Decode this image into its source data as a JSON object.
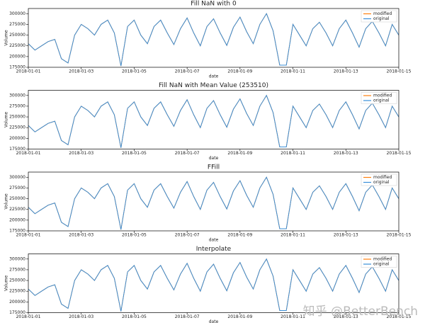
{
  "chart_data": [
    {
      "type": "line",
      "title": "Fill NaN with 0",
      "x_label": "date",
      "y_label": "Volume",
      "x": [
        0,
        0.25,
        0.5,
        0.75,
        1,
        1.25,
        1.5,
        1.75,
        2,
        2.25,
        2.5,
        2.75,
        3,
        3.25,
        3.5,
        3.75,
        4,
        4.25,
        4.5,
        4.75,
        5,
        5.25,
        5.5,
        5.75,
        6,
        6.25,
        6.5,
        6.75,
        7,
        7.25,
        7.5,
        7.75,
        8,
        8.25,
        8.5,
        8.75,
        9,
        9.25,
        9.5,
        9.75,
        10,
        10.25,
        10.5,
        10.75,
        11,
        11.25,
        11.5,
        11.75,
        12,
        12.25,
        12.5,
        12.75,
        13,
        13.25,
        13.5,
        13.75,
        14
      ],
      "series": [
        {
          "name": "modified",
          "color": "#ff7f0e",
          "values": [
            230000,
            215000,
            225000,
            235000,
            240000,
            195000,
            185000,
            250000,
            275000,
            265000,
            250000,
            275000,
            285000,
            255000,
            178000,
            270000,
            285000,
            250000,
            230000,
            270000,
            285000,
            255000,
            228000,
            265000,
            290000,
            255000,
            225000,
            270000,
            288000,
            255000,
            226000,
            268000,
            292000,
            258000,
            230000,
            275000,
            300000,
            260000,
            180000,
            180000,
            275000,
            250000,
            225000,
            265000,
            280000,
            255000,
            225000,
            265000,
            285000,
            255000,
            222000,
            265000,
            282000,
            255000,
            225000,
            275000,
            250000
          ]
        },
        {
          "name": "original",
          "color": "#3a8fd9",
          "values": [
            230000,
            215000,
            225000,
            235000,
            240000,
            195000,
            185000,
            250000,
            275000,
            265000,
            250000,
            275000,
            285000,
            255000,
            178000,
            270000,
            285000,
            250000,
            230000,
            270000,
            285000,
            255000,
            228000,
            265000,
            290000,
            255000,
            225000,
            270000,
            288000,
            255000,
            226000,
            268000,
            292000,
            258000,
            230000,
            275000,
            300000,
            260000,
            180000,
            180000,
            275000,
            250000,
            225000,
            265000,
            280000,
            255000,
            225000,
            265000,
            285000,
            255000,
            222000,
            265000,
            282000,
            255000,
            225000,
            275000,
            250000
          ]
        }
      ],
      "xlim": [
        0,
        14
      ],
      "xticks": [
        {
          "value": 0,
          "label": "2018-01-01"
        },
        {
          "value": 2,
          "label": "2018-01-03"
        },
        {
          "value": 4,
          "label": "2018-01-05"
        },
        {
          "value": 6,
          "label": "2018-01-07"
        },
        {
          "value": 8,
          "label": "2018-01-09"
        },
        {
          "value": 10,
          "label": "2018-01-11"
        },
        {
          "value": 12,
          "label": "2018-01-13"
        },
        {
          "value": 14,
          "label": "2018-01-15"
        }
      ],
      "ylim": [
        175000,
        312000
      ],
      "yticks": [
        175000,
        200000,
        225000,
        250000,
        275000,
        300000
      ],
      "legend": "upper right"
    },
    {
      "type": "line",
      "title": "Fill NaN with Mean Value (253510)",
      "x_label": "date",
      "y_label": "Volume",
      "x": [
        0,
        0.25,
        0.5,
        0.75,
        1,
        1.25,
        1.5,
        1.75,
        2,
        2.25,
        2.5,
        2.75,
        3,
        3.25,
        3.5,
        3.75,
        4,
        4.25,
        4.5,
        4.75,
        5,
        5.25,
        5.5,
        5.75,
        6,
        6.25,
        6.5,
        6.75,
        7,
        7.25,
        7.5,
        7.75,
        8,
        8.25,
        8.5,
        8.75,
        9,
        9.25,
        9.5,
        9.75,
        10,
        10.25,
        10.5,
        10.75,
        11,
        11.25,
        11.5,
        11.75,
        12,
        12.25,
        12.5,
        12.75,
        13,
        13.25,
        13.5,
        13.75,
        14
      ],
      "series": [
        {
          "name": "modified",
          "color": "#ff7f0e",
          "values": [
            230000,
            215000,
            225000,
            235000,
            240000,
            195000,
            185000,
            250000,
            275000,
            265000,
            250000,
            275000,
            285000,
            255000,
            178000,
            270000,
            285000,
            250000,
            230000,
            270000,
            285000,
            255000,
            228000,
            265000,
            290000,
            255000,
            225000,
            270000,
            288000,
            255000,
            226000,
            268000,
            292000,
            258000,
            230000,
            275000,
            300000,
            260000,
            180000,
            180000,
            275000,
            250000,
            225000,
            265000,
            280000,
            255000,
            225000,
            265000,
            285000,
            255000,
            222000,
            265000,
            282000,
            255000,
            225000,
            275000,
            250000
          ]
        },
        {
          "name": "original",
          "color": "#3a8fd9",
          "values": [
            230000,
            215000,
            225000,
            235000,
            240000,
            195000,
            185000,
            250000,
            275000,
            265000,
            250000,
            275000,
            285000,
            255000,
            178000,
            270000,
            285000,
            250000,
            230000,
            270000,
            285000,
            255000,
            228000,
            265000,
            290000,
            255000,
            225000,
            270000,
            288000,
            255000,
            226000,
            268000,
            292000,
            258000,
            230000,
            275000,
            300000,
            260000,
            180000,
            180000,
            275000,
            250000,
            225000,
            265000,
            280000,
            255000,
            225000,
            265000,
            285000,
            255000,
            222000,
            265000,
            282000,
            255000,
            225000,
            275000,
            250000
          ]
        }
      ],
      "xlim": [
        0,
        14
      ],
      "xticks": [
        {
          "value": 0,
          "label": "2018-01-01"
        },
        {
          "value": 2,
          "label": "2018-01-03"
        },
        {
          "value": 4,
          "label": "2018-01-05"
        },
        {
          "value": 6,
          "label": "2018-01-07"
        },
        {
          "value": 8,
          "label": "2018-01-09"
        },
        {
          "value": 10,
          "label": "2018-01-11"
        },
        {
          "value": 12,
          "label": "2018-01-13"
        },
        {
          "value": 14,
          "label": "2018-01-15"
        }
      ],
      "ylim": [
        175000,
        312000
      ],
      "yticks": [
        175000,
        200000,
        225000,
        250000,
        275000,
        300000
      ],
      "legend": "upper right"
    },
    {
      "type": "line",
      "title": "FFill",
      "x_label": "date",
      "y_label": "Volume",
      "x": [
        0,
        0.25,
        0.5,
        0.75,
        1,
        1.25,
        1.5,
        1.75,
        2,
        2.25,
        2.5,
        2.75,
        3,
        3.25,
        3.5,
        3.75,
        4,
        4.25,
        4.5,
        4.75,
        5,
        5.25,
        5.5,
        5.75,
        6,
        6.25,
        6.5,
        6.75,
        7,
        7.25,
        7.5,
        7.75,
        8,
        8.25,
        8.5,
        8.75,
        9,
        9.25,
        9.5,
        9.75,
        10,
        10.25,
        10.5,
        10.75,
        11,
        11.25,
        11.5,
        11.75,
        12,
        12.25,
        12.5,
        12.75,
        13,
        13.25,
        13.5,
        13.75,
        14
      ],
      "series": [
        {
          "name": "modified",
          "color": "#ff7f0e",
          "values": [
            230000,
            215000,
            225000,
            235000,
            240000,
            195000,
            185000,
            250000,
            275000,
            265000,
            250000,
            275000,
            285000,
            255000,
            178000,
            270000,
            285000,
            250000,
            230000,
            270000,
            285000,
            255000,
            228000,
            265000,
            290000,
            255000,
            225000,
            270000,
            288000,
            255000,
            226000,
            268000,
            292000,
            258000,
            230000,
            275000,
            300000,
            260000,
            180000,
            180000,
            275000,
            250000,
            225000,
            265000,
            280000,
            255000,
            225000,
            265000,
            285000,
            255000,
            222000,
            265000,
            282000,
            255000,
            225000,
            275000,
            250000
          ]
        },
        {
          "name": "original",
          "color": "#3a8fd9",
          "values": [
            230000,
            215000,
            225000,
            235000,
            240000,
            195000,
            185000,
            250000,
            275000,
            265000,
            250000,
            275000,
            285000,
            255000,
            178000,
            270000,
            285000,
            250000,
            230000,
            270000,
            285000,
            255000,
            228000,
            265000,
            290000,
            255000,
            225000,
            270000,
            288000,
            255000,
            226000,
            268000,
            292000,
            258000,
            230000,
            275000,
            300000,
            260000,
            180000,
            180000,
            275000,
            250000,
            225000,
            265000,
            280000,
            255000,
            225000,
            265000,
            285000,
            255000,
            222000,
            265000,
            282000,
            255000,
            225000,
            275000,
            250000
          ]
        }
      ],
      "xlim": [
        0,
        14
      ],
      "xticks": [
        {
          "value": 0,
          "label": "2018-01-01"
        },
        {
          "value": 2,
          "label": "2018-01-03"
        },
        {
          "value": 4,
          "label": "2018-01-05"
        },
        {
          "value": 6,
          "label": "2018-01-07"
        },
        {
          "value": 8,
          "label": "2018-01-09"
        },
        {
          "value": 10,
          "label": "2018-01-11"
        },
        {
          "value": 12,
          "label": "2018-01-13"
        },
        {
          "value": 14,
          "label": "2018-01-15"
        }
      ],
      "ylim": [
        175000,
        312000
      ],
      "yticks": [
        175000,
        200000,
        225000,
        250000,
        275000,
        300000
      ],
      "legend": "upper right"
    },
    {
      "type": "line",
      "title": "Interpolate",
      "x_label": "date",
      "y_label": "Volume",
      "x": [
        0,
        0.25,
        0.5,
        0.75,
        1,
        1.25,
        1.5,
        1.75,
        2,
        2.25,
        2.5,
        2.75,
        3,
        3.25,
        3.5,
        3.75,
        4,
        4.25,
        4.5,
        4.75,
        5,
        5.25,
        5.5,
        5.75,
        6,
        6.25,
        6.5,
        6.75,
        7,
        7.25,
        7.5,
        7.75,
        8,
        8.25,
        8.5,
        8.75,
        9,
        9.25,
        9.5,
        9.75,
        10,
        10.25,
        10.5,
        10.75,
        11,
        11.25,
        11.5,
        11.75,
        12,
        12.25,
        12.5,
        12.75,
        13,
        13.25,
        13.5,
        13.75,
        14
      ],
      "series": [
        {
          "name": "modified",
          "color": "#ff7f0e",
          "values": [
            230000,
            215000,
            225000,
            235000,
            240000,
            195000,
            185000,
            250000,
            275000,
            265000,
            250000,
            275000,
            285000,
            255000,
            178000,
            270000,
            285000,
            250000,
            230000,
            270000,
            285000,
            255000,
            228000,
            265000,
            290000,
            255000,
            225000,
            270000,
            288000,
            255000,
            226000,
            268000,
            292000,
            258000,
            230000,
            275000,
            300000,
            260000,
            180000,
            180000,
            275000,
            250000,
            225000,
            265000,
            280000,
            255000,
            225000,
            265000,
            285000,
            255000,
            222000,
            265000,
            282000,
            255000,
            225000,
            275000,
            250000
          ]
        },
        {
          "name": "original",
          "color": "#3a8fd9",
          "values": [
            230000,
            215000,
            225000,
            235000,
            240000,
            195000,
            185000,
            250000,
            275000,
            265000,
            250000,
            275000,
            285000,
            255000,
            178000,
            270000,
            285000,
            250000,
            230000,
            270000,
            285000,
            255000,
            228000,
            265000,
            290000,
            255000,
            225000,
            270000,
            288000,
            255000,
            226000,
            268000,
            292000,
            258000,
            230000,
            275000,
            300000,
            260000,
            180000,
            180000,
            275000,
            250000,
            225000,
            265000,
            280000,
            255000,
            225000,
            265000,
            285000,
            255000,
            222000,
            265000,
            282000,
            255000,
            225000,
            275000,
            250000
          ]
        }
      ],
      "xlim": [
        0,
        14
      ],
      "xticks": [
        {
          "value": 0,
          "label": "2018-01-01"
        },
        {
          "value": 2,
          "label": "2018-01-03"
        },
        {
          "value": 4,
          "label": "2018-01-05"
        },
        {
          "value": 6,
          "label": "2018-01-07"
        },
        {
          "value": 8,
          "label": "2018-01-09"
        },
        {
          "value": 10,
          "label": "2018-01-11"
        },
        {
          "value": 12,
          "label": "2018-01-13"
        },
        {
          "value": 14,
          "label": "2018-01-15"
        }
      ],
      "ylim": [
        175000,
        312000
      ],
      "yticks": [
        175000,
        200000,
        225000,
        250000,
        275000,
        300000
      ],
      "legend": "upper right"
    }
  ],
  "watermark": "知乎 @BetterBench"
}
